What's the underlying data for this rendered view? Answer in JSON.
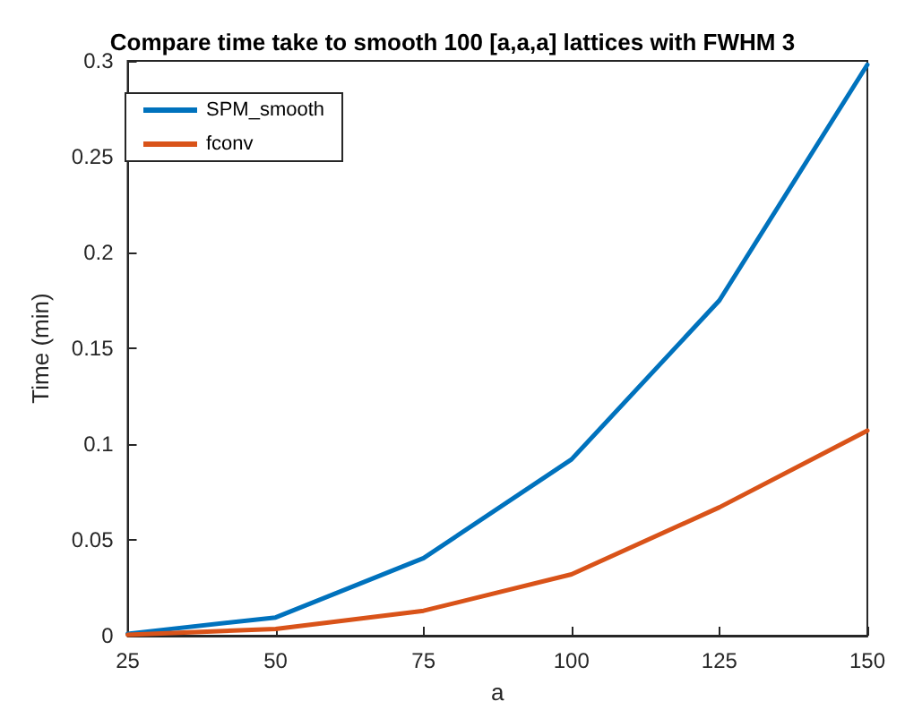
{
  "chart_data": {
    "type": "line",
    "title": "Compare time take to smooth 100 [a,a,a] lattices with FWHM 3",
    "xlabel": "a",
    "ylabel": "Time (min)",
    "x": [
      25,
      50,
      75,
      100,
      125,
      150
    ],
    "series": [
      {
        "name": "SPM_smooth",
        "color": "#0072bd",
        "values": [
          0.001,
          0.0095,
          0.0405,
          0.092,
          0.175,
          0.298
        ]
      },
      {
        "name": "fconv",
        "color": "#d95319",
        "values": [
          0.0005,
          0.0035,
          0.013,
          0.032,
          0.067,
          0.107
        ]
      }
    ],
    "xlim": [
      25,
      150
    ],
    "xticks": [
      25,
      50,
      75,
      100,
      125,
      150
    ],
    "ylim": [
      0,
      0.3
    ],
    "yticks": [
      0,
      0.05,
      0.1,
      0.15,
      0.2,
      0.25,
      0.3
    ],
    "grid": false,
    "legend": "top left",
    "marker": "none",
    "line_style": "solid"
  }
}
